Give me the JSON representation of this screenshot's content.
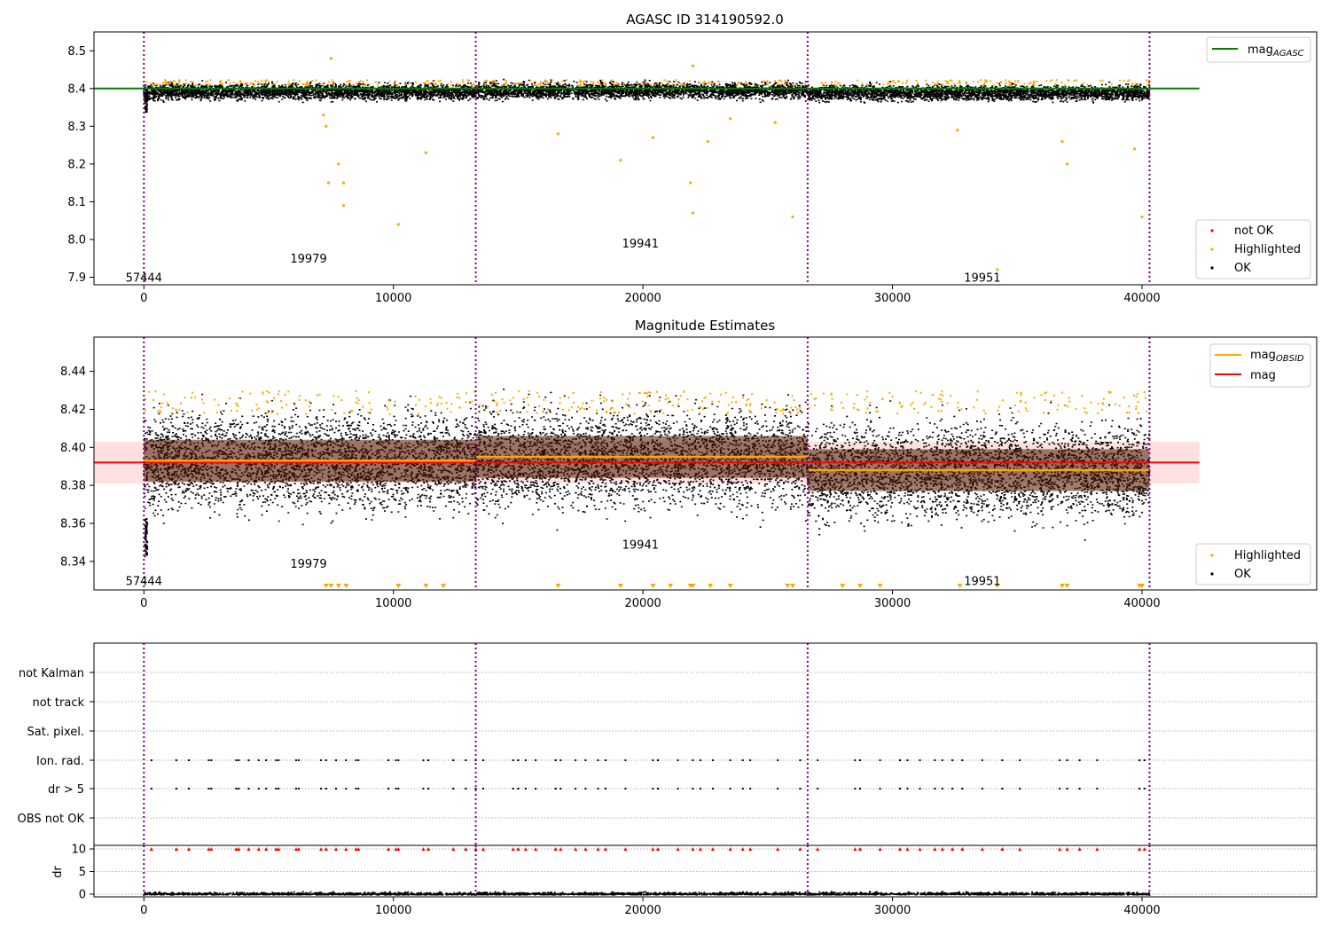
{
  "figure": {
    "axis_x_ticks": [
      0,
      10000,
      20000,
      30000,
      40000
    ],
    "xlim": [
      -2000,
      47000
    ],
    "obsid_boundaries": [
      0,
      13300,
      26600,
      40300
    ],
    "colors": {
      "ok": "#000000",
      "highlighted": "#ffa500",
      "not_ok": "#ff0000",
      "agasc_line": "#008000",
      "mag_line": "#ff0000",
      "obsid_line": "#ffa500",
      "boundary": "#800080",
      "band": "#ffcccc"
    }
  },
  "chart_data": [
    {
      "type": "scatter",
      "title": "AGASC ID 314190592.0",
      "ylim": [
        7.88,
        8.55
      ],
      "yticks": [
        "7.9",
        "8.0",
        "8.1",
        "8.2",
        "8.3",
        "8.4",
        "8.5"
      ],
      "xticks": [
        "0",
        "10000",
        "20000",
        "30000",
        "40000"
      ],
      "hlines": [
        {
          "name": "mag_AGASC",
          "y": 8.4,
          "x_end": 42300
        }
      ],
      "obsid_labels": [
        {
          "text": "57444",
          "x": 0,
          "y": 7.9
        },
        {
          "text": "19979",
          "x": 6600,
          "y": 7.95
        },
        {
          "text": "19941",
          "x": 19900,
          "y": 7.99
        },
        {
          "text": "19951",
          "x": 33600,
          "y": 7.9
        }
      ],
      "band": {
        "center": 8.393,
        "half": 0.018
      },
      "highlighted_outliers": [
        [
          7500,
          8.48
        ],
        [
          7400,
          8.15
        ],
        [
          7800,
          8.2
        ],
        [
          8000,
          8.15
        ],
        [
          8000,
          8.09
        ],
        [
          10200,
          8.04
        ],
        [
          11300,
          8.23
        ],
        [
          19100,
          8.21
        ],
        [
          20400,
          8.27
        ],
        [
          21900,
          8.15
        ],
        [
          22000,
          8.07
        ],
        [
          22600,
          8.26
        ],
        [
          22000,
          8.46
        ],
        [
          25300,
          8.31
        ],
        [
          26000,
          8.06
        ],
        [
          16600,
          8.28
        ],
        [
          34200,
          7.92
        ],
        [
          36800,
          8.26
        ],
        [
          37000,
          8.2
        ],
        [
          39700,
          8.24
        ],
        [
          40000,
          8.06
        ],
        [
          32600,
          8.29
        ],
        [
          7200,
          8.33
        ],
        [
          7300,
          8.3
        ],
        [
          23500,
          8.32
        ]
      ],
      "legends": [
        {
          "label": "mag",
          "sub": "AGASC",
          "kind": "line",
          "color": "#008000",
          "position": "top-right"
        },
        {
          "entries": [
            "not OK",
            "Highlighted",
            "OK"
          ],
          "position": "lower-right"
        }
      ]
    },
    {
      "type": "scatter",
      "title": "Magnitude Estimates",
      "ylim": [
        8.325,
        8.458
      ],
      "yticks": [
        "8.34",
        "8.36",
        "8.38",
        "8.40",
        "8.42",
        "8.44"
      ],
      "xticks": [
        "0",
        "10000",
        "20000",
        "30000",
        "40000"
      ],
      "mag_line": {
        "y": 8.392,
        "x_end": 42300,
        "band": [
          8.381,
          8.403
        ]
      },
      "obsid_means": [
        {
          "x0": 0,
          "x1": 13300,
          "y": 8.393
        },
        {
          "x0": 13300,
          "x1": 26600,
          "y": 8.395
        },
        {
          "x0": 26600,
          "x1": 40300,
          "y": 8.388
        }
      ],
      "obsid_labels": [
        {
          "text": "57444",
          "x": 0,
          "y": 8.33
        },
        {
          "text": "19979",
          "x": 6600,
          "y": 8.339
        },
        {
          "text": "19941",
          "x": 19900,
          "y": 8.349
        },
        {
          "text": "19951",
          "x": 33600,
          "y": 8.33
        }
      ],
      "below_range_markers": [
        7300,
        7500,
        7800,
        8100,
        10200,
        11300,
        12000,
        16600,
        19100,
        20400,
        21100,
        21900,
        22000,
        22700,
        23500,
        25800,
        26000,
        28000,
        28700,
        29500,
        32700,
        34200,
        36800,
        37000,
        39900,
        40000
      ],
      "legends": [
        {
          "entries": [
            {
              "label": "mag",
              "sub": "OBSID",
              "color": "#ffa500"
            },
            {
              "label": "mag",
              "color": "#ff0000"
            }
          ],
          "position": "top-right"
        },
        {
          "entries": [
            "Highlighted",
            "OK"
          ],
          "position": "lower-right"
        }
      ]
    },
    {
      "type": "scatter",
      "title": "",
      "categories": [
        "not Kalman",
        "not track",
        "Sat. pixel.",
        "Ion. rad.",
        "dr > 5",
        "OBS not OK"
      ],
      "flag_x": [
        300,
        1300,
        1800,
        2600,
        2700,
        3700,
        3800,
        4200,
        4600,
        4900,
        5300,
        5400,
        6100,
        6200,
        7100,
        7300,
        7700,
        8100,
        8500,
        8600,
        9800,
        10100,
        10200,
        11200,
        11400,
        12400,
        12900,
        13300,
        13600,
        14800,
        15000,
        15300,
        15700,
        16500,
        16700,
        17300,
        17700,
        18200,
        18500,
        19300,
        20400,
        20600,
        21400,
        22000,
        22300,
        22800,
        23500,
        24000,
        24300,
        25400,
        26300,
        27000,
        28500,
        28700,
        29500,
        30300,
        30600,
        31100,
        31700,
        32000,
        32400,
        32800,
        33600,
        34400,
        35100,
        36700,
        37000,
        37500,
        38200,
        39900,
        40100
      ],
      "dr_ylim": [
        0,
        10
      ],
      "dr_yticks": [
        "0",
        "5",
        "10"
      ],
      "dr_ylabel": "dr",
      "xticks": [
        "0",
        "10000",
        "20000",
        "30000",
        "40000"
      ]
    }
  ]
}
